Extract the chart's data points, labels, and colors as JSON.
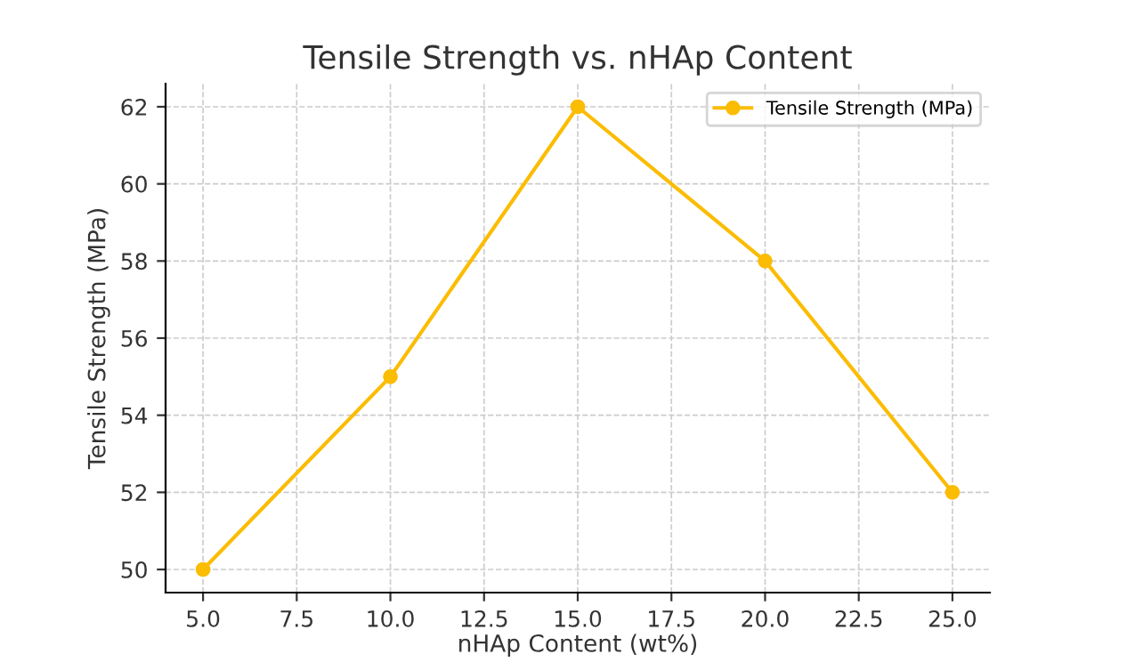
{
  "chart_data": {
    "type": "line",
    "title": "Tensile Strength vs. nHAp Content",
    "xlabel": "nHAp Content (wt%)",
    "ylabel": "Tensile Strength (MPa)",
    "x": [
      5,
      10,
      15,
      20,
      25
    ],
    "series": [
      {
        "name": "Tensile Strength (MPa)",
        "color": "#fbbc04",
        "values": [
          50,
          55,
          62,
          58,
          52
        ]
      }
    ],
    "xlim": [
      4.0,
      26.0
    ],
    "xticks": [
      {
        "value": 5,
        "label": "5.0"
      },
      7.5,
      {
        "value": 10,
        "label": "10.0"
      },
      12.5,
      {
        "value": 15,
        "label": "15.0"
      },
      17.5,
      {
        "value": 20,
        "label": "20.0"
      },
      22.5,
      {
        "value": 25,
        "label": "25.0"
      }
    ],
    "ylim": [
      49.4,
      62.6
    ],
    "yticks": [
      50,
      52,
      54,
      56,
      58,
      60,
      62
    ],
    "grid": true,
    "legend": "top right",
    "marker": "circle",
    "line_style": "solid"
  }
}
